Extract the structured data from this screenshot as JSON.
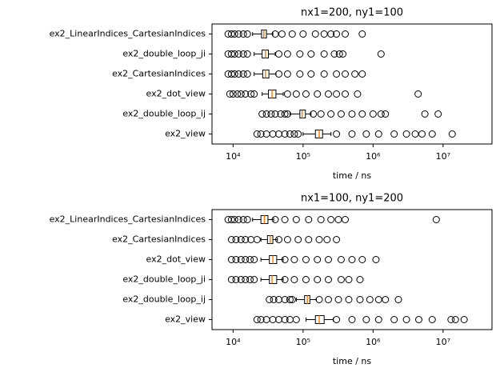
{
  "chart_data": [
    {
      "type": "boxplot",
      "title": "nx1=200, ny1=100",
      "xlabel": "time / ns",
      "xscale": "log",
      "xlim": [
        5000,
        50000000
      ],
      "xticks": [
        {
          "value": 10000,
          "label": "10⁴"
        },
        {
          "value": 100000,
          "label": "10⁵"
        },
        {
          "value": 1000000,
          "label": "10⁶"
        },
        {
          "value": 10000000,
          "label": "10⁷"
        }
      ],
      "median_color": "#ff7f0e",
      "categories": [
        "ex2_LinearIndices_CartesianIndices",
        "ex2_double_loop_ji",
        "ex2_CartesianIndices",
        "ex2_dot_view",
        "ex2_double_loop_ij",
        "ex2_view"
      ],
      "boxes": [
        {
          "whislo": 19000,
          "q1": 25500,
          "med": 27500,
          "q3": 30000,
          "whishi": 37000,
          "fliers": [
            8500,
            9500,
            10500,
            12000,
            14000,
            16000,
            40000,
            50000,
            70000,
            100000,
            150000,
            200000,
            250000,
            300000,
            400000,
            700000
          ]
        },
        {
          "whislo": 20000,
          "q1": 26000,
          "med": 29000,
          "q3": 32000,
          "whishi": 40000,
          "fliers": [
            8500,
            9500,
            10500,
            12000,
            14000,
            16000,
            45000,
            60000,
            90000,
            130000,
            200000,
            280000,
            330000,
            370000,
            1300000
          ]
        },
        {
          "whislo": 20000,
          "q1": 26500,
          "med": 29000,
          "q3": 32500,
          "whishi": 41000,
          "fliers": [
            8500,
            9500,
            10500,
            12000,
            14000,
            16000,
            45000,
            60000,
            90000,
            130000,
            200000,
            300000,
            400000,
            550000,
            700000
          ]
        },
        {
          "whislo": 26000,
          "q1": 32000,
          "med": 36000,
          "q3": 41000,
          "whishi": 52000,
          "fliers": [
            9000,
            10000,
            11500,
            13000,
            15000,
            18000,
            20000,
            60000,
            80000,
            110000,
            160000,
            230000,
            300000,
            400000,
            600000,
            4400000
          ]
        },
        {
          "whislo": 65000,
          "q1": 90000,
          "med": 97000,
          "q3": 108000,
          "whishi": 130000,
          "fliers": [
            26000,
            30000,
            35000,
            40000,
            48000,
            55000,
            60000,
            140000,
            180000,
            250000,
            350000,
            500000,
            700000,
            1000000,
            1300000,
            1500000,
            5500000,
            8500000
          ]
        },
        {
          "whislo": 100000,
          "q1": 150000,
          "med": 170000,
          "q3": 190000,
          "whishi": 250000,
          "fliers": [
            22000,
            25000,
            30000,
            37000,
            45000,
            55000,
            65000,
            75000,
            85000,
            300000,
            500000,
            800000,
            1200000,
            2000000,
            3000000,
            4000000,
            5000000,
            7000000,
            13500000
          ]
        }
      ]
    },
    {
      "type": "boxplot",
      "title": "nx1=100, ny1=200",
      "xlabel": "time / ns",
      "xscale": "log",
      "xlim": [
        5000,
        50000000
      ],
      "xticks": [
        {
          "value": 10000,
          "label": "10⁴"
        },
        {
          "value": 100000,
          "label": "10⁵"
        },
        {
          "value": 1000000,
          "label": "10⁶"
        },
        {
          "value": 10000000,
          "label": "10⁷"
        }
      ],
      "median_color": "#ff7f0e",
      "categories": [
        "ex2_LinearIndices_CartesianIndices",
        "ex2_CartesianIndices",
        "ex2_dot_view",
        "ex2_double_loop_ji",
        "ex2_double_loop_ij",
        "ex2_view"
      ],
      "boxes": [
        {
          "whislo": 19000,
          "q1": 25000,
          "med": 28000,
          "q3": 31500,
          "whishi": 38000,
          "fliers": [
            8500,
            9500,
            10500,
            12000,
            14000,
            16000,
            40000,
            55000,
            80000,
            120000,
            180000,
            250000,
            320000,
            400000,
            8000000
          ]
        },
        {
          "whislo": 25000,
          "q1": 31000,
          "med": 34000,
          "q3": 37000,
          "whishi": 43000,
          "fliers": [
            9500,
            11000,
            13000,
            15000,
            18000,
            22000,
            45000,
            60000,
            85000,
            120000,
            170000,
            220000,
            300000
          ]
        },
        {
          "whislo": 25000,
          "q1": 33000,
          "med": 37000,
          "q3": 42000,
          "whishi": 52000,
          "fliers": [
            9500,
            11000,
            13000,
            15000,
            17500,
            20000,
            55000,
            75000,
            110000,
            160000,
            230000,
            350000,
            500000,
            700000,
            1100000
          ]
        },
        {
          "whislo": 25000,
          "q1": 33000,
          "med": 36000,
          "q3": 42000,
          "whishi": 52000,
          "fliers": [
            9500,
            11000,
            13000,
            15000,
            17500,
            20000,
            55000,
            75000,
            110000,
            160000,
            230000,
            350000,
            450000,
            650000
          ]
        },
        {
          "whislo": 80000,
          "q1": 105000,
          "med": 115000,
          "q3": 125000,
          "whishi": 155000,
          "fliers": [
            33000,
            38000,
            45000,
            55000,
            65000,
            70000,
            170000,
            230000,
            320000,
            450000,
            650000,
            900000,
            1200000,
            1500000,
            2300000
          ]
        },
        {
          "whislo": 110000,
          "q1": 150000,
          "med": 170000,
          "q3": 200000,
          "whishi": 270000,
          "fliers": [
            22000,
            25000,
            30000,
            37000,
            45000,
            55000,
            65000,
            80000,
            300000,
            500000,
            800000,
            1200000,
            2000000,
            3000000,
            4500000,
            7000000,
            13000000,
            15000000,
            20000000
          ]
        }
      ]
    }
  ]
}
